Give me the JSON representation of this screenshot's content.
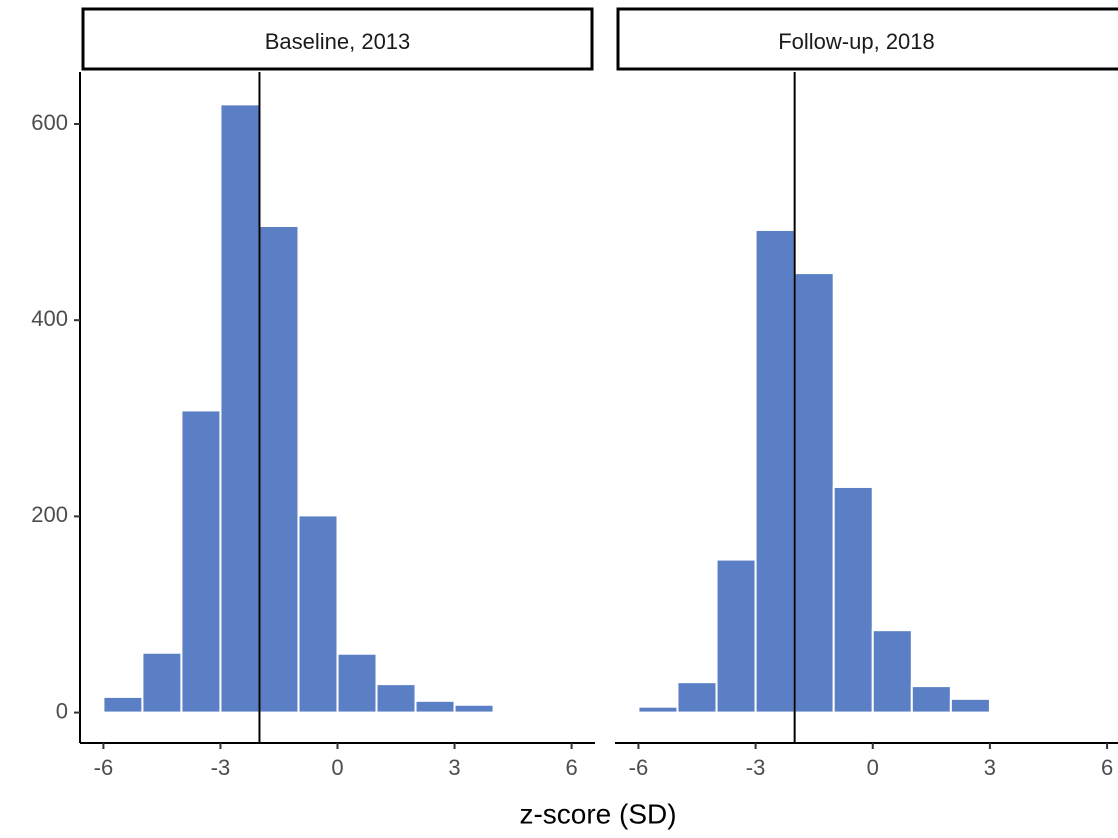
{
  "chart_data": [
    {
      "type": "histogram",
      "title": "Baseline, 2013",
      "xlabel": "z-score (SD)",
      "bins": [
        -6,
        -5,
        -4,
        -3,
        -2,
        -1,
        0,
        1,
        2,
        3,
        4
      ],
      "values": [
        16,
        61,
        308,
        620,
        496,
        201,
        60,
        29,
        12,
        8
      ],
      "color": "#5b7fc4",
      "vline": -2,
      "xlim": [
        -6.6,
        6.6
      ],
      "xticks": [
        -6,
        -3,
        0,
        3,
        6
      ],
      "ylim": [
        -31,
        653
      ],
      "yticks": [
        0,
        200,
        400,
        600
      ]
    },
    {
      "type": "histogram",
      "title": "Follow-up, 2018",
      "bins": [
        -6,
        -5,
        -4,
        -3,
        -2,
        -1,
        0,
        1,
        2,
        3
      ],
      "values": [
        6,
        31,
        156,
        492,
        448,
        230,
        84,
        27,
        14
      ],
      "color": "#5b7fc4",
      "vline": -2,
      "xlim": [
        -6.6,
        6.28
      ],
      "xticks": [
        -6,
        -3,
        0,
        3,
        6
      ],
      "ylim": [
        -31,
        653
      ]
    }
  ]
}
